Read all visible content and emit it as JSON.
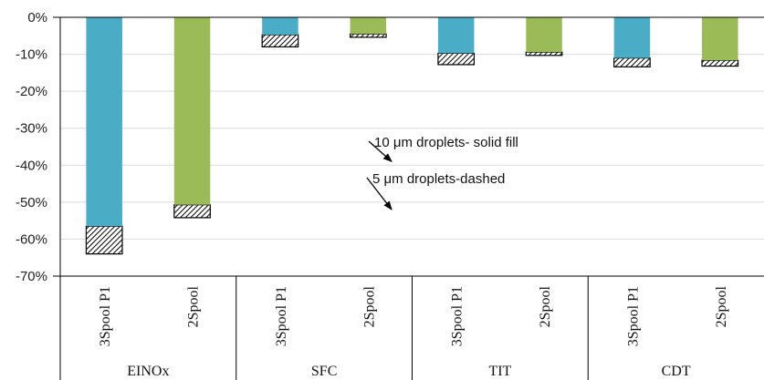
{
  "chart_data": {
    "type": "bar",
    "ylim": [
      -70,
      0
    ],
    "yticks": [
      0,
      -10,
      -20,
      -30,
      -40,
      -50,
      -60,
      -70
    ],
    "ytick_labels": [
      "0%",
      "-10%",
      "-20%",
      "-30%",
      "-40%",
      "-50%",
      "-60%",
      "-70%"
    ],
    "grid": "horizontal",
    "groups": [
      {
        "label": "EINOx",
        "bars": [
          {
            "label": "3Spool P1",
            "solid": -56.5,
            "dashed": -64.0,
            "color": "#4bacc6"
          },
          {
            "label": "2Spool",
            "solid": -50.7,
            "dashed": -54.2,
            "color": "#9bbb59"
          }
        ]
      },
      {
        "label": "SFC",
        "bars": [
          {
            "label": "3Spool P1",
            "solid": -4.7,
            "dashed": -8.0,
            "color": "#4bacc6"
          },
          {
            "label": "2Spool",
            "solid": -4.5,
            "dashed": -5.4,
            "color": "#9bbb59"
          }
        ]
      },
      {
        "label": "TIT",
        "bars": [
          {
            "label": "3Spool P1",
            "solid": -9.7,
            "dashed": -12.8,
            "color": "#4bacc6"
          },
          {
            "label": "2Spool",
            "solid": -9.4,
            "dashed": -10.3,
            "color": "#9bbb59"
          }
        ]
      },
      {
        "label": "CDT",
        "bars": [
          {
            "label": "3Spool P1",
            "solid": -11.0,
            "dashed": -13.4,
            "color": "#4bacc6"
          },
          {
            "label": "2Spool",
            "solid": -11.6,
            "dashed": -13.2,
            "color": "#9bbb59"
          }
        ]
      }
    ],
    "annotations": [
      {
        "text": "10 μm droplets- solid fill",
        "points_to": {
          "group": 1,
          "bar": 1,
          "value": -39
        }
      },
      {
        "text": "5 μm droplets-dashed",
        "points_to": {
          "group": 1,
          "bar": 1,
          "value": -52
        }
      }
    ]
  }
}
